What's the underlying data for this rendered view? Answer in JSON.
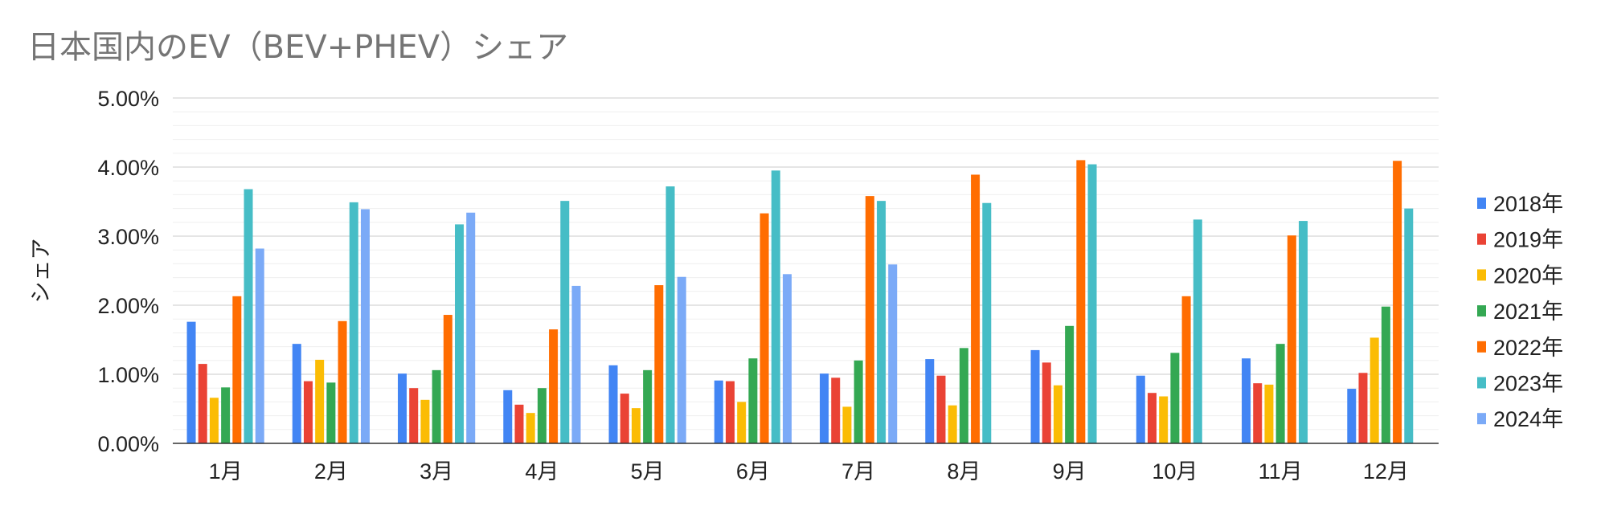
{
  "chart_data": {
    "type": "bar",
    "title": "日本国内のEV（BEV+PHEV）シェア",
    "xlabel": "",
    "ylabel": "シェア",
    "ylim": [
      0,
      0.05
    ],
    "yticks": [
      0.0,
      0.01,
      0.02,
      0.03,
      0.04,
      0.05
    ],
    "ytick_labels": [
      "0.00%",
      "1.00%",
      "2.00%",
      "3.00%",
      "4.00%",
      "5.00%"
    ],
    "grid": true,
    "legend_position": "right",
    "categories": [
      "1月",
      "2月",
      "3月",
      "4月",
      "5月",
      "6月",
      "7月",
      "8月",
      "9月",
      "10月",
      "11月",
      "12月"
    ],
    "series": [
      {
        "name": "2018年",
        "color": "#4285f4",
        "values": [
          0.0176,
          0.0144,
          0.0101,
          0.0077,
          0.0113,
          0.0091,
          0.0101,
          0.0122,
          0.0135,
          0.0098,
          0.0123,
          0.0079
        ]
      },
      {
        "name": "2019年",
        "color": "#ea4335",
        "values": [
          0.0115,
          0.009,
          0.008,
          0.0056,
          0.0072,
          0.009,
          0.0095,
          0.0098,
          0.0117,
          0.0073,
          0.0087,
          0.0102
        ]
      },
      {
        "name": "2020年",
        "color": "#fbbc04",
        "values": [
          0.0066,
          0.0121,
          0.0063,
          0.0044,
          0.0051,
          0.006,
          0.0053,
          0.0055,
          0.0084,
          0.0068,
          0.0085,
          0.0153
        ]
      },
      {
        "name": "2021年",
        "color": "#34a853",
        "values": [
          0.0081,
          0.0088,
          0.0106,
          0.008,
          0.0106,
          0.0123,
          0.012,
          0.0138,
          0.017,
          0.0131,
          0.0144,
          0.0198
        ]
      },
      {
        "name": "2022年",
        "color": "#ff6d01",
        "values": [
          0.0213,
          0.0177,
          0.0186,
          0.0165,
          0.0229,
          0.0333,
          0.0358,
          0.0389,
          0.041,
          0.0213,
          0.0301,
          0.0409
        ]
      },
      {
        "name": "2023年",
        "color": "#46bdc6",
        "values": [
          0.0368,
          0.0349,
          0.0317,
          0.0351,
          0.0372,
          0.0395,
          0.0351,
          0.0348,
          0.0404,
          0.0324,
          0.0322,
          0.034
        ]
      },
      {
        "name": "2024年",
        "color": "#7baaf7",
        "values": [
          0.0282,
          0.0339,
          0.0334,
          0.0228,
          0.0241,
          0.0245,
          0.0259,
          null,
          null,
          null,
          null,
          null
        ]
      }
    ]
  }
}
